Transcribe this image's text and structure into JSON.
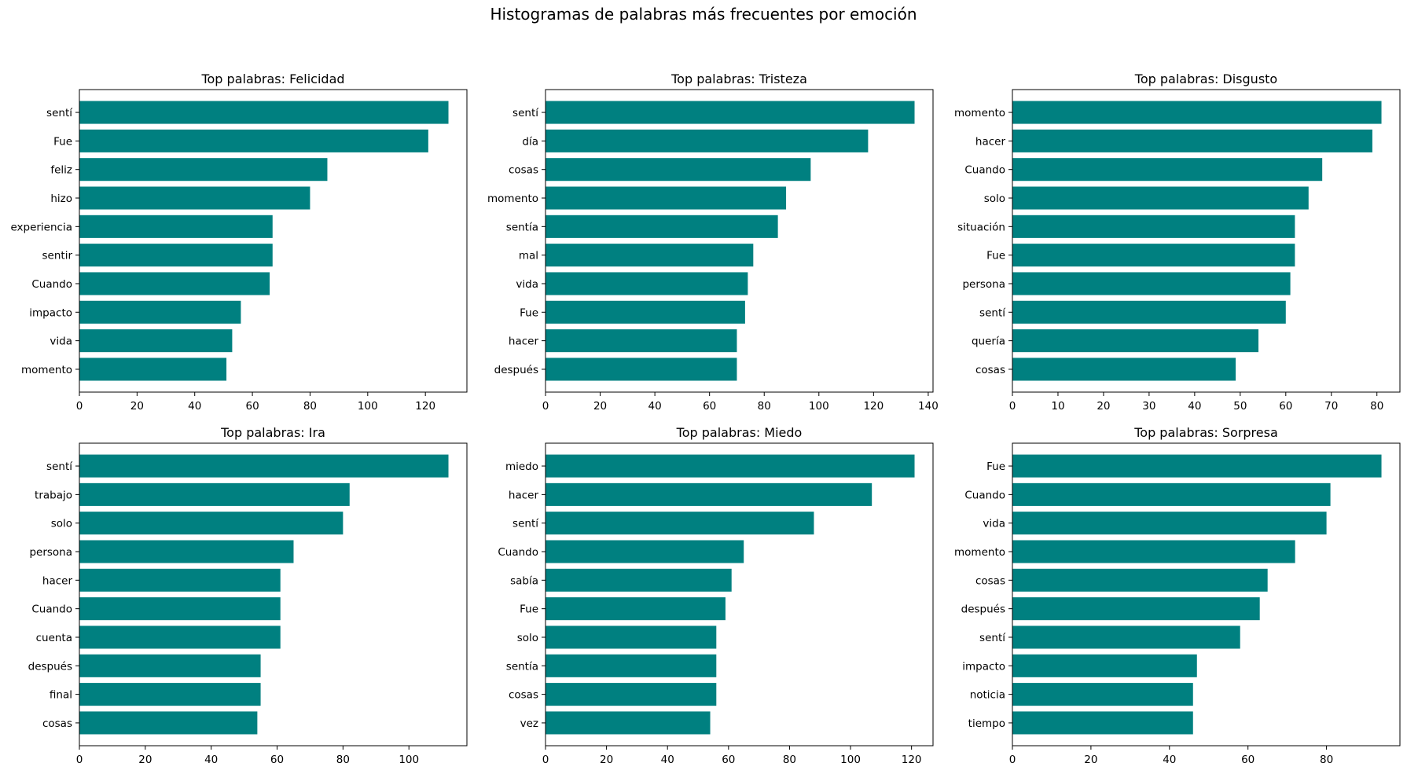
{
  "suptitle": "Histogramas de palabras más frecuentes por emoción",
  "bar_color": "#008080",
  "chart_data": [
    {
      "type": "bar",
      "orientation": "horizontal",
      "title": "Top palabras: Felicidad",
      "categories": [
        "sentí",
        "Fue",
        "feliz",
        "hizo",
        "experiencia",
        "sentir",
        "Cuando",
        "impacto",
        "vida",
        "momento"
      ],
      "values": [
        128,
        121,
        86,
        80,
        67,
        67,
        66,
        56,
        53,
        51
      ],
      "xlim": [
        0,
        134.4
      ],
      "xticks": [
        0,
        20,
        40,
        60,
        80,
        100,
        120
      ],
      "grid": false
    },
    {
      "type": "bar",
      "orientation": "horizontal",
      "title": "Top palabras: Tristeza",
      "categories": [
        "sentí",
        "día",
        "cosas",
        "momento",
        "sentía",
        "mal",
        "vida",
        "Fue",
        "hacer",
        "después"
      ],
      "values": [
        135,
        118,
        97,
        88,
        85,
        76,
        74,
        73,
        70,
        70
      ],
      "xlim": [
        0,
        141.75
      ],
      "xticks": [
        0,
        20,
        40,
        60,
        80,
        100,
        120,
        140
      ],
      "grid": false
    },
    {
      "type": "bar",
      "orientation": "horizontal",
      "title": "Top palabras: Disgusto",
      "categories": [
        "momento",
        "hacer",
        "Cuando",
        "solo",
        "situación",
        "Fue",
        "persona",
        "sentí",
        "quería",
        "cosas"
      ],
      "values": [
        81,
        79,
        68,
        65,
        62,
        62,
        61,
        60,
        54,
        49
      ],
      "xlim": [
        0,
        85.05
      ],
      "xticks": [
        0,
        10,
        20,
        30,
        40,
        50,
        60,
        70,
        80
      ],
      "grid": false
    },
    {
      "type": "bar",
      "orientation": "horizontal",
      "title": "Top palabras: Ira",
      "categories": [
        "sentí",
        "trabajo",
        "solo",
        "persona",
        "hacer",
        "Cuando",
        "cuenta",
        "después",
        "final",
        "cosas"
      ],
      "values": [
        112,
        82,
        80,
        65,
        61,
        61,
        61,
        55,
        55,
        54
      ],
      "xlim": [
        0,
        117.6
      ],
      "xticks": [
        0,
        20,
        40,
        60,
        80,
        100
      ],
      "grid": false
    },
    {
      "type": "bar",
      "orientation": "horizontal",
      "title": "Top palabras: Miedo",
      "categories": [
        "miedo",
        "hacer",
        "sentí",
        "Cuando",
        "sabía",
        "Fue",
        "solo",
        "sentía",
        "cosas",
        "vez"
      ],
      "values": [
        121,
        107,
        88,
        65,
        61,
        59,
        56,
        56,
        56,
        54
      ],
      "xlim": [
        0,
        127.05
      ],
      "xticks": [
        0,
        20,
        40,
        60,
        80,
        100,
        120
      ],
      "grid": false
    },
    {
      "type": "bar",
      "orientation": "horizontal",
      "title": "Top palabras: Sorpresa",
      "categories": [
        "Fue",
        "Cuando",
        "vida",
        "momento",
        "cosas",
        "después",
        "sentí",
        "impacto",
        "noticia",
        "tiempo"
      ],
      "values": [
        94,
        81,
        80,
        72,
        65,
        63,
        58,
        47,
        46,
        46
      ],
      "xlim": [
        0,
        98.7
      ],
      "xticks": [
        0,
        20,
        40,
        60,
        80
      ],
      "grid": false
    }
  ]
}
